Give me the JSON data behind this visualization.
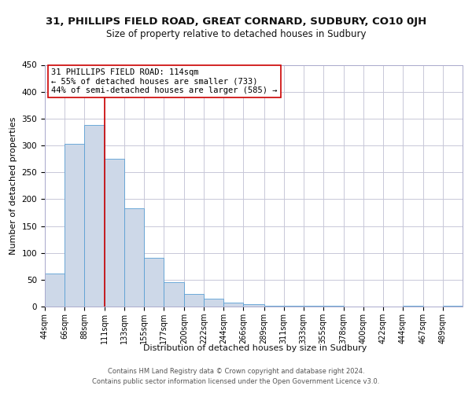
{
  "title1": "31, PHILLIPS FIELD ROAD, GREAT CORNARD, SUDBURY, CO10 0JH",
  "title2": "Size of property relative to detached houses in Sudbury",
  "xlabel": "Distribution of detached houses by size in Sudbury",
  "ylabel": "Number of detached properties",
  "bar_color": "#cdd8e8",
  "bar_edge_color": "#5a9fd4",
  "vline_x": 111,
  "vline_color": "#cc0000",
  "annotation_title": "31 PHILLIPS FIELD ROAD: 114sqm",
  "annotation_line1": "← 55% of detached houses are smaller (733)",
  "annotation_line2": "44% of semi-detached houses are larger (585) →",
  "bins": [
    44,
    66,
    88,
    111,
    133,
    155,
    177,
    200,
    222,
    244,
    266,
    289,
    311,
    333,
    355,
    378,
    400,
    422,
    444,
    467,
    489
  ],
  "counts": [
    62,
    303,
    338,
    275,
    183,
    91,
    45,
    24,
    15,
    7,
    4,
    2,
    1,
    1,
    1,
    0,
    0,
    0,
    1,
    0,
    1
  ],
  "tick_labels": [
    "44sqm",
    "66sqm",
    "88sqm",
    "111sqm",
    "133sqm",
    "155sqm",
    "177sqm",
    "200sqm",
    "222sqm",
    "244sqm",
    "266sqm",
    "289sqm",
    "311sqm",
    "333sqm",
    "355sqm",
    "378sqm",
    "400sqm",
    "422sqm",
    "444sqm",
    "467sqm",
    "489sqm"
  ],
  "ylim": [
    0,
    450
  ],
  "yticks": [
    0,
    50,
    100,
    150,
    200,
    250,
    300,
    350,
    400,
    450
  ],
  "footer1": "Contains HM Land Registry data © Crown copyright and database right 2024.",
  "footer2": "Contains public sector information licensed under the Open Government Licence v3.0.",
  "background_color": "#ffffff",
  "grid_color": "#c8c8d8",
  "title1_fontsize": 9.5,
  "title2_fontsize": 8.5,
  "xlabel_fontsize": 8,
  "ylabel_fontsize": 8,
  "tick_fontsize": 7,
  "ytick_fontsize": 7.5,
  "annotation_fontsize": 7.5,
  "footer_fontsize": 6.0
}
